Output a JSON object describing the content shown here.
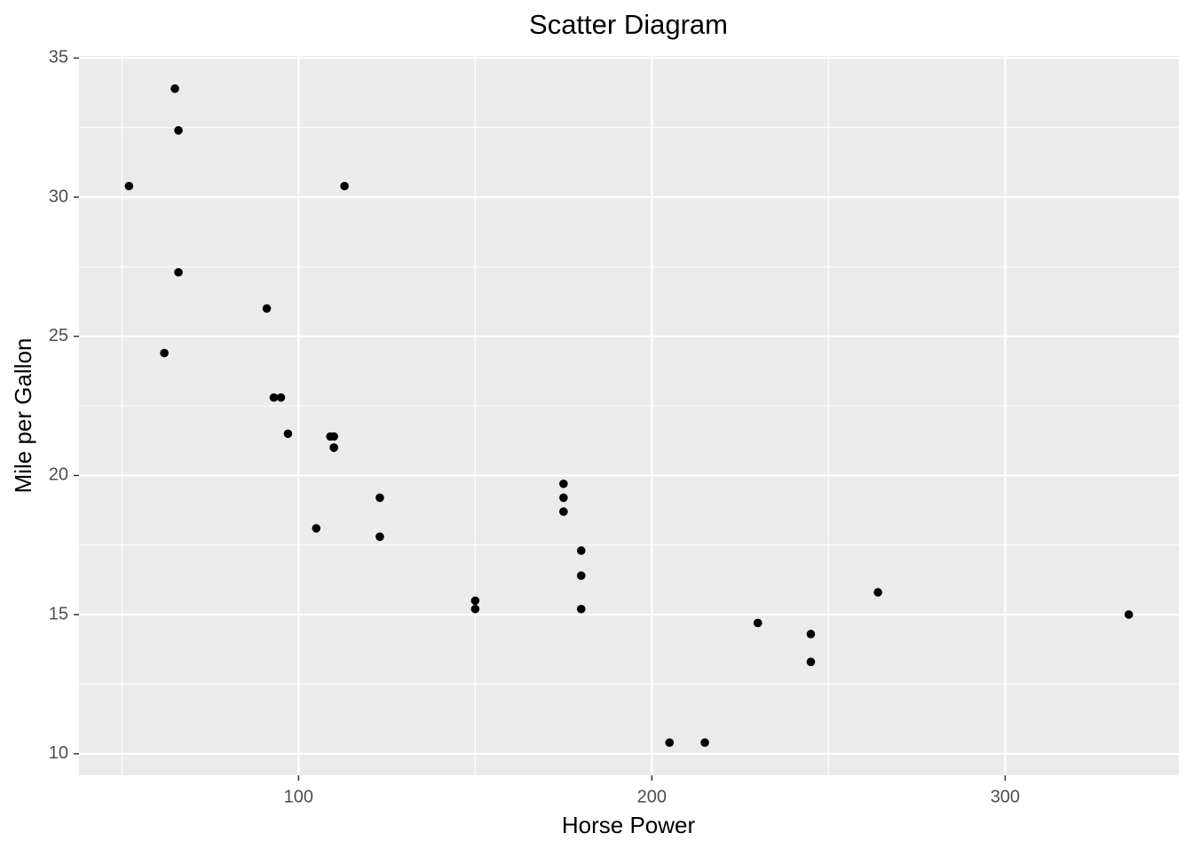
{
  "chart_data": {
    "type": "scatter",
    "title": "Scatter Diagram",
    "x_label": "Horse Power",
    "y_label": "Mile per Gallon",
    "x": [
      110,
      110,
      93,
      110,
      175,
      105,
      245,
      62,
      95,
      123,
      123,
      180,
      180,
      180,
      205,
      215,
      230,
      66,
      52,
      65,
      97,
      150,
      150,
      245,
      175,
      66,
      91,
      113,
      264,
      175,
      335,
      109
    ],
    "values": [
      21.0,
      21.0,
      22.8,
      21.4,
      18.7,
      18.1,
      14.3,
      24.4,
      22.8,
      19.2,
      17.8,
      16.4,
      17.3,
      15.2,
      10.4,
      10.4,
      14.7,
      32.4,
      30.4,
      33.9,
      21.5,
      15.5,
      15.2,
      13.3,
      19.2,
      27.3,
      26.0,
      30.4,
      15.8,
      19.7,
      15.0,
      21.4
    ],
    "color": "#000000",
    "xlim": [
      37.85,
      349.15
    ],
    "ylim": [
      9.225,
      35.075
    ],
    "xticks": [
      100,
      200,
      300
    ],
    "yticks": [
      10,
      15,
      20,
      25,
      30,
      35
    ],
    "grid": true
  }
}
